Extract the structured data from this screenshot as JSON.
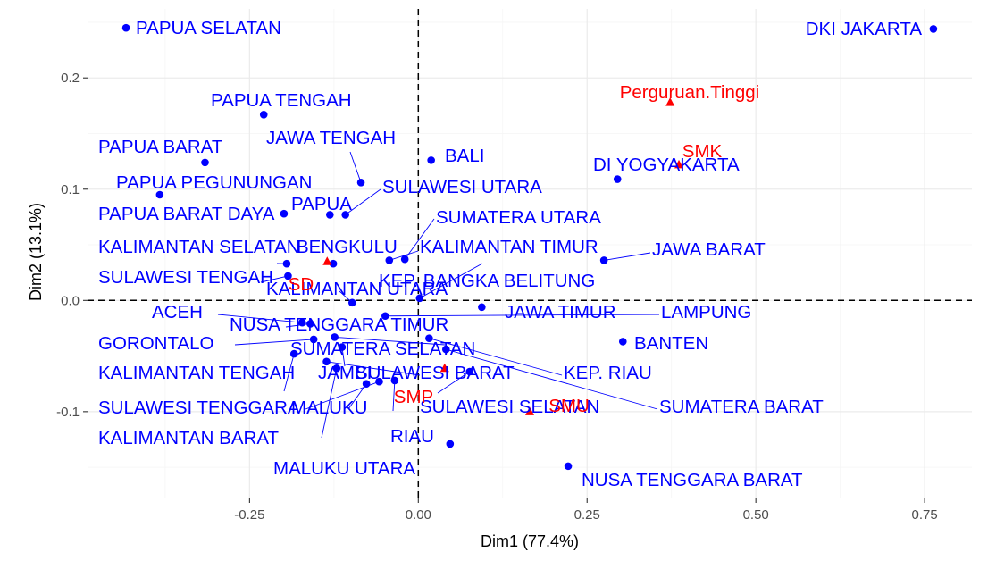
{
  "chart_data": {
    "type": "scatter",
    "xlabel": "Dim1 (77.4%)",
    "ylabel": "Dim2 (13.1%)",
    "xlim": [
      -0.49,
      0.82
    ],
    "ylim": [
      -0.178,
      0.262
    ],
    "x_ticks": [
      -0.25,
      0.0,
      0.25,
      0.5,
      0.75
    ],
    "x_tick_labels": [
      "-0.25",
      "0.00",
      "0.25",
      "0.50",
      "0.75"
    ],
    "y_ticks": [
      -0.1,
      0.0,
      0.1,
      0.2
    ],
    "y_tick_labels": [
      "-0.1",
      "0.0",
      "0.1",
      "0.2"
    ],
    "grid": true,
    "reference_lines": {
      "x": 0,
      "y": 0,
      "style": "dashed"
    },
    "colors": {
      "rows": "#0000ff",
      "columns": "#ff0000"
    },
    "series": [
      {
        "marker": "circle",
        "color": "#0000ff",
        "points": [
          {
            "label": "PAPUA SELATAN",
            "x": -0.433,
            "y": 0.245
          },
          {
            "label": "DKI JAKARTA",
            "x": 0.763,
            "y": 0.244
          },
          {
            "label": "PAPUA TENGAH",
            "x": -0.229,
            "y": 0.167
          },
          {
            "label": "PAPUA BARAT",
            "x": -0.316,
            "y": 0.124
          },
          {
            "label": "BALI",
            "x": 0.019,
            "y": 0.126
          },
          {
            "label": "JAWA TENGAH",
            "x": -0.085,
            "y": 0.106
          },
          {
            "label": "DI YOGYAKARTA",
            "x": 0.295,
            "y": 0.109
          },
          {
            "label": "PAPUA PEGUNUNGAN",
            "x": -0.383,
            "y": 0.095
          },
          {
            "label": "SULAWESI UTARA",
            "x": -0.108,
            "y": 0.077
          },
          {
            "label": "PAPUA",
            "x": -0.131,
            "y": 0.077
          },
          {
            "label": "PAPUA BARAT DAYA",
            "x": -0.199,
            "y": 0.078
          },
          {
            "label": "SUMATERA UTARA",
            "x": -0.02,
            "y": 0.037
          },
          {
            "label": "JAWA BARAT",
            "x": 0.275,
            "y": 0.036
          },
          {
            "label": "KALIMANTAN SELATAN",
            "x": -0.195,
            "y": 0.033
          },
          {
            "label": "BENGKULU",
            "x": -0.126,
            "y": 0.033
          },
          {
            "label": "KALIMANTAN TIMUR",
            "x": -0.043,
            "y": 0.036
          },
          {
            "label": "SULAWESI TENGAH",
            "x": -0.193,
            "y": 0.022
          },
          {
            "label": "KALIMANTAN UTARA",
            "x": -0.098,
            "y": -0.002
          },
          {
            "label": "KEP. BANGKA BELITUNG",
            "x": 0.002,
            "y": 0.002
          },
          {
            "label": "JAWA TIMUR",
            "x": 0.094,
            "y": -0.006
          },
          {
            "label": "LAMPUNG",
            "x": -0.049,
            "y": -0.014
          },
          {
            "label": "ACEH",
            "x": -0.172,
            "y": -0.02
          },
          {
            "label": "NUSA TENGGARA TIMUR",
            "x": -0.16,
            "y": -0.021
          },
          {
            "label": "GORONTALO",
            "x": -0.155,
            "y": -0.035
          },
          {
            "label": "SUMATERA SELATAN",
            "x": -0.124,
            "y": -0.033
          },
          {
            "label": "BANTEN",
            "x": 0.303,
            "y": -0.037
          },
          {
            "label": "KEP. RIAU",
            "x": 0.016,
            "y": -0.034
          },
          {
            "label": "SUMATERA BARAT",
            "x": 0.041,
            "y": -0.044
          },
          {
            "label": "KALIMANTAN TENGAH",
            "x": -0.184,
            "y": -0.048
          },
          {
            "label": "JAMBI",
            "x": -0.113,
            "y": -0.042
          },
          {
            "label": "SULAWESI BARAT",
            "x": -0.136,
            "y": -0.055
          },
          {
            "label": "SULAWESI SELATAN",
            "x": 0.076,
            "y": -0.064
          },
          {
            "label": "SULAWESI TENGGARA",
            "x": -0.058,
            "y": -0.073
          },
          {
            "label": "MALUKU",
            "x": -0.077,
            "y": -0.075
          },
          {
            "label": "KALIMANTAN BARAT",
            "x": -0.121,
            "y": -0.061
          },
          {
            "label": "RIAU",
            "x": 0.047,
            "y": -0.129
          },
          {
            "label": "MALUKU UTARA",
            "x": -0.035,
            "y": -0.072
          },
          {
            "label": "NUSA TENGGARA BARAT",
            "x": 0.222,
            "y": -0.149
          }
        ]
      },
      {
        "marker": "triangle",
        "color": "#ff0000",
        "points": [
          {
            "label": "Perguruan.Tinggi",
            "x": 0.373,
            "y": 0.178
          },
          {
            "label": "SMK",
            "x": 0.386,
            "y": 0.122
          },
          {
            "label": "SD",
            "x": -0.135,
            "y": 0.035
          },
          {
            "label": "SMP",
            "x": 0.039,
            "y": -0.061
          },
          {
            "label": "SMU",
            "x": 0.165,
            "y": -0.1
          }
        ]
      }
    ]
  }
}
